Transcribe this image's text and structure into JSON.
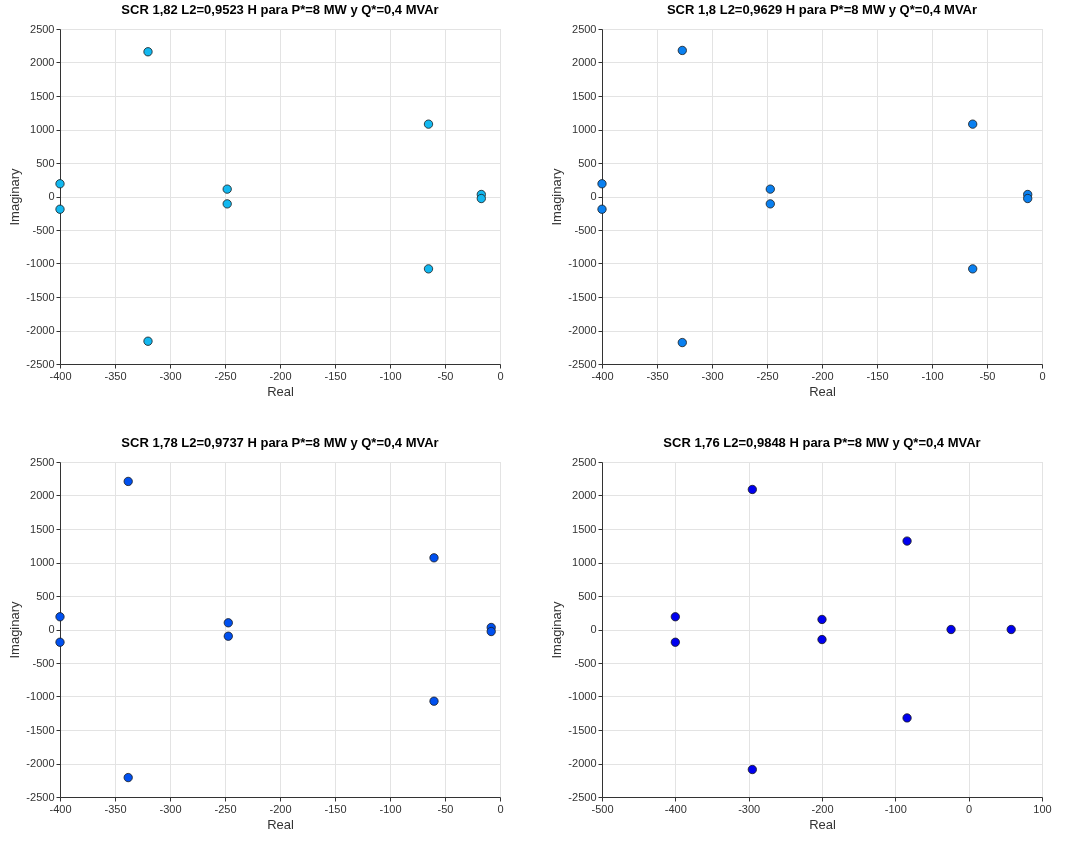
{
  "chart_data": [
    {
      "type": "scatter",
      "title": "SCR 1,82 L2=0,9523 H para P*=8 MW y Q*=0,4 MVAr",
      "xlabel": "Real",
      "ylabel": "Imaginary",
      "grid": true,
      "marker": "circle",
      "xlim": [
        -400,
        0
      ],
      "xticks": [
        -400,
        -350,
        -300,
        -250,
        -200,
        -150,
        -100,
        -50,
        0
      ],
      "ylim": [
        -2500,
        2500
      ],
      "yticks": [
        -2500,
        -2000,
        -1500,
        -1000,
        -500,
        0,
        500,
        1000,
        1500,
        2000,
        2500
      ],
      "series": [
        {
          "color": "#12b8f0",
          "x": [
            -320,
            -320,
            -400,
            -400,
            -248,
            -248,
            -65,
            -65,
            -17,
            -17
          ],
          "values": [
            2160,
            -2160,
            190,
            -190,
            110,
            -110,
            1080,
            -1080,
            30,
            -30
          ]
        }
      ]
    },
    {
      "type": "scatter",
      "title": "SCR 1,8 L2=0,9629 H para P*=8 MW y Q*=0,4 MVAr",
      "xlabel": "Real",
      "ylabel": "Imaginary",
      "grid": true,
      "marker": "circle",
      "xlim": [
        -400,
        0
      ],
      "xticks": [
        -400,
        -350,
        -300,
        -250,
        -200,
        -150,
        -100,
        -50,
        0
      ],
      "ylim": [
        -2500,
        2500
      ],
      "yticks": [
        -2500,
        -2000,
        -1500,
        -1000,
        -500,
        0,
        500,
        1000,
        1500,
        2000,
        2500
      ],
      "series": [
        {
          "color": "#0a80f0",
          "x": [
            -327,
            -327,
            -400,
            -400,
            -247,
            -247,
            -63,
            -63,
            -13,
            -13
          ],
          "values": [
            2180,
            -2180,
            190,
            -190,
            110,
            -110,
            1080,
            -1080,
            30,
            -30
          ]
        }
      ]
    },
    {
      "type": "scatter",
      "title": "SCR 1,78 L2=0,9737 H para P*=8 MW y Q*=0,4 MVAr",
      "xlabel": "Real",
      "ylabel": "Imaginary",
      "grid": true,
      "marker": "circle",
      "xlim": [
        -400,
        0
      ],
      "xticks": [
        -400,
        -350,
        -300,
        -250,
        -200,
        -150,
        -100,
        -50,
        0
      ],
      "ylim": [
        -2500,
        2500
      ],
      "yticks": [
        -2500,
        -2000,
        -1500,
        -1000,
        -500,
        0,
        500,
        1000,
        1500,
        2000,
        2500
      ],
      "series": [
        {
          "color": "#0050f0",
          "x": [
            -338,
            -338,
            -400,
            -400,
            -247,
            -247,
            -60,
            -60,
            -8,
            -8
          ],
          "values": [
            2210,
            -2210,
            190,
            -190,
            100,
            -100,
            1070,
            -1070,
            30,
            -30
          ]
        }
      ]
    },
    {
      "type": "scatter",
      "title": "SCR 1,76 L2=0,9848 H para P*=8 MW y Q*=0,4 MVAr",
      "xlabel": "Real",
      "ylabel": "Imaginary",
      "grid": true,
      "marker": "circle",
      "xlim": [
        -500,
        100
      ],
      "xticks": [
        -500,
        -400,
        -300,
        -200,
        -100,
        0,
        100
      ],
      "ylim": [
        -2500,
        2500
      ],
      "yticks": [
        -2500,
        -2000,
        -1500,
        -1000,
        -500,
        0,
        500,
        1000,
        1500,
        2000,
        2500
      ],
      "series": [
        {
          "color": "#0000f0",
          "x": [
            -295,
            -295,
            -400,
            -400,
            -200,
            -200,
            -84,
            -84,
            -24,
            58
          ],
          "values": [
            2090,
            -2090,
            190,
            -190,
            150,
            -150,
            1320,
            -1320,
            0,
            0
          ]
        }
      ]
    }
  ]
}
